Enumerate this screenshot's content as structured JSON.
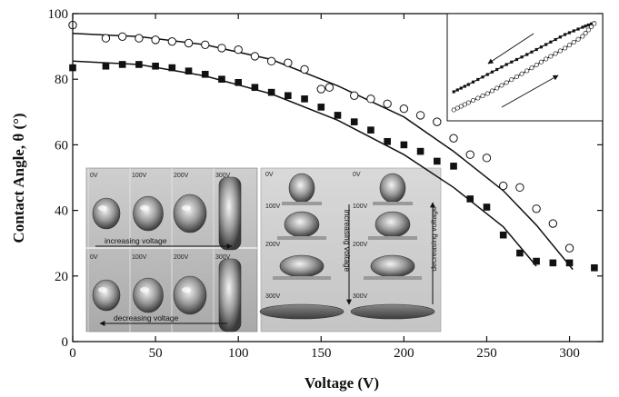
{
  "chart_data": {
    "type": "scatter",
    "title": "",
    "xlabel": "Voltage (V)",
    "ylabel": "Contact Angle, θ (°)",
    "xlim": [
      0,
      320
    ],
    "ylim": [
      0,
      100
    ],
    "x_ticks": [
      0,
      50,
      100,
      150,
      200,
      250,
      300
    ],
    "y_ticks": [
      0,
      20,
      40,
      60,
      80,
      100
    ],
    "grid": false,
    "legend": "none",
    "series": [
      {
        "marker": "open-circle",
        "points": [
          [
            0,
            96.5
          ],
          [
            20,
            92.5
          ],
          [
            30,
            93
          ],
          [
            40,
            92.5
          ],
          [
            50,
            92
          ],
          [
            60,
            91.5
          ],
          [
            70,
            91
          ],
          [
            80,
            90.5
          ],
          [
            90,
            89.5
          ],
          [
            100,
            89
          ],
          [
            110,
            87
          ],
          [
            120,
            85.5
          ],
          [
            130,
            85
          ],
          [
            140,
            83
          ],
          [
            150,
            77
          ],
          [
            155,
            77.5
          ],
          [
            170,
            75
          ],
          [
            180,
            74
          ],
          [
            190,
            72.5
          ],
          [
            200,
            71
          ],
          [
            210,
            69
          ],
          [
            220,
            67
          ],
          [
            230,
            62
          ],
          [
            240,
            57
          ],
          [
            250,
            56
          ],
          [
            260,
            47.5
          ],
          [
            270,
            47
          ],
          [
            280,
            40.5
          ],
          [
            290,
            36
          ],
          [
            300,
            28.5
          ]
        ],
        "fit": [
          [
            0,
            94
          ],
          [
            40,
            93
          ],
          [
            80,
            90.5
          ],
          [
            120,
            86
          ],
          [
            160,
            78
          ],
          [
            200,
            68.5
          ],
          [
            230,
            58
          ],
          [
            260,
            46
          ],
          [
            280,
            35.5
          ],
          [
            302,
            22
          ]
        ]
      },
      {
        "marker": "filled-square",
        "points": [
          [
            0,
            83.5
          ],
          [
            20,
            84
          ],
          [
            30,
            84.5
          ],
          [
            40,
            84.5
          ],
          [
            50,
            84
          ],
          [
            60,
            83.5
          ],
          [
            70,
            82.5
          ],
          [
            80,
            81.5
          ],
          [
            90,
            80
          ],
          [
            100,
            79
          ],
          [
            110,
            77.5
          ],
          [
            120,
            76
          ],
          [
            130,
            75
          ],
          [
            140,
            74
          ],
          [
            150,
            71.5
          ],
          [
            160,
            69
          ],
          [
            170,
            67
          ],
          [
            180,
            64.5
          ],
          [
            190,
            61
          ],
          [
            200,
            60
          ],
          [
            210,
            58
          ],
          [
            220,
            55
          ],
          [
            230,
            53.5
          ],
          [
            240,
            43.5
          ],
          [
            250,
            41
          ],
          [
            260,
            32.5
          ],
          [
            270,
            27
          ],
          [
            280,
            24.5
          ],
          [
            290,
            24
          ],
          [
            300,
            24
          ],
          [
            315,
            22.5
          ]
        ],
        "fit": [
          [
            0,
            85.5
          ],
          [
            40,
            84.5
          ],
          [
            80,
            81
          ],
          [
            120,
            75.5
          ],
          [
            160,
            67.5
          ],
          [
            200,
            57
          ],
          [
            230,
            47
          ],
          [
            260,
            35
          ],
          [
            280,
            23
          ]
        ]
      }
    ],
    "annotations": {
      "hysteresis_inset": {
        "upper_series": [
          [
            0.02,
            0.22
          ],
          [
            0.12,
            0.3
          ],
          [
            0.25,
            0.41
          ],
          [
            0.38,
            0.52
          ],
          [
            0.52,
            0.63
          ],
          [
            0.65,
            0.74
          ],
          [
            0.78,
            0.85
          ],
          [
            0.9,
            0.93
          ],
          [
            0.98,
            0.98
          ]
        ],
        "lower_series": [
          [
            0.02,
            0.02
          ],
          [
            0.12,
            0.1
          ],
          [
            0.25,
            0.2
          ],
          [
            0.38,
            0.32
          ],
          [
            0.52,
            0.45
          ],
          [
            0.65,
            0.58
          ],
          [
            0.78,
            0.7
          ],
          [
            0.9,
            0.83
          ],
          [
            0.98,
            0.97
          ]
        ]
      },
      "photo_left": {
        "top_labels": [
          "0V",
          "100V",
          "200V",
          "300V"
        ],
        "top_caption": "increasing voltage",
        "bottom_labels": [
          "0V",
          "100V",
          "200V",
          "300V"
        ],
        "bottom_caption": "decreasing voltage"
      },
      "photo_right": {
        "left_labels": [
          "0V",
          "100V",
          "200V",
          "300V"
        ],
        "right_labels": [
          "0V",
          "100V",
          "200V",
          "300V"
        ],
        "left_caption": "increasing voltage",
        "right_caption": "decreasing voltage"
      }
    }
  }
}
